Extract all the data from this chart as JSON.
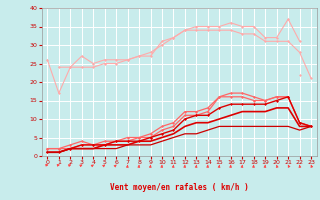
{
  "xlabel": "Vent moyen/en rafales ( km/h )",
  "bg_color": "#c8ecec",
  "grid_color": "#ffffff",
  "x_values": [
    0,
    1,
    2,
    3,
    4,
    5,
    6,
    7,
    8,
    9,
    10,
    11,
    12,
    13,
    14,
    15,
    16,
    17,
    18,
    19,
    20,
    21,
    22,
    23
  ],
  "series": [
    {
      "name": "light1",
      "color": "#ffaaaa",
      "lw": 0.8,
      "marker": "D",
      "ms": 1.5,
      "values": [
        26,
        17,
        24,
        27,
        25,
        26,
        26,
        26,
        27,
        27,
        31,
        32,
        34,
        34,
        34,
        34,
        34,
        33,
        33,
        31,
        31,
        31,
        28,
        21
      ]
    },
    {
      "name": "light2",
      "color": "#ffaaaa",
      "lw": 0.8,
      "marker": "D",
      "ms": 1.5,
      "values": [
        null,
        24,
        24,
        24,
        24,
        25,
        25,
        26,
        27,
        28,
        30,
        32,
        34,
        35,
        35,
        35,
        36,
        35,
        35,
        32,
        32,
        37,
        31,
        null
      ]
    },
    {
      "name": "light3",
      "color": "#ffaaaa",
      "lw": 0.8,
      "marker": "D",
      "ms": 1.5,
      "values": [
        null,
        null,
        null,
        null,
        null,
        null,
        null,
        null,
        null,
        null,
        null,
        null,
        null,
        null,
        null,
        null,
        null,
        null,
        null,
        null,
        null,
        null,
        22,
        null
      ]
    },
    {
      "name": "medium1",
      "color": "#ff6666",
      "lw": 0.9,
      "marker": "D",
      "ms": 1.5,
      "values": [
        2,
        2,
        2,
        3,
        3,
        3,
        4,
        4,
        5,
        5,
        7,
        8,
        11,
        11,
        12,
        16,
        16,
        16,
        15,
        15,
        16,
        16,
        9,
        8
      ]
    },
    {
      "name": "medium2",
      "color": "#ff6666",
      "lw": 0.9,
      "marker": "D",
      "ms": 1.5,
      "values": [
        2,
        2,
        3,
        4,
        3,
        4,
        4,
        5,
        5,
        6,
        8,
        9,
        12,
        12,
        13,
        16,
        17,
        17,
        16,
        15,
        16,
        16,
        9,
        8
      ]
    },
    {
      "name": "dark1",
      "color": "#dd0000",
      "lw": 1.0,
      "marker": "D",
      "ms": 1.5,
      "values": [
        1,
        1,
        2,
        3,
        3,
        3,
        4,
        4,
        4,
        5,
        6,
        7,
        10,
        11,
        11,
        13,
        14,
        14,
        14,
        14,
        15,
        16,
        9,
        8
      ]
    },
    {
      "name": "dark2",
      "color": "#dd0000",
      "lw": 1.2,
      "marker": null,
      "ms": 0,
      "values": [
        1,
        1,
        2,
        2,
        2,
        3,
        3,
        3,
        4,
        4,
        5,
        6,
        8,
        9,
        9,
        10,
        11,
        12,
        12,
        12,
        13,
        13,
        8,
        8
      ]
    },
    {
      "name": "bottom",
      "color": "#cc0000",
      "lw": 0.9,
      "marker": null,
      "ms": 0,
      "values": [
        1,
        1,
        2,
        2,
        2,
        2,
        2,
        3,
        3,
        3,
        4,
        5,
        6,
        6,
        7,
        8,
        8,
        8,
        8,
        8,
        8,
        8,
        7,
        8
      ]
    }
  ],
  "arrow_angles": [
    80,
    75,
    65,
    55,
    50,
    45,
    40,
    5,
    5,
    5,
    5,
    5,
    5,
    5,
    5,
    5,
    5,
    5,
    5,
    5,
    -10,
    -20,
    -5,
    -15
  ],
  "xlim": [
    -0.5,
    23.5
  ],
  "ylim": [
    0,
    40
  ],
  "yticks": [
    0,
    5,
    10,
    15,
    20,
    25,
    30,
    35,
    40
  ],
  "xticks": [
    0,
    1,
    2,
    3,
    4,
    5,
    6,
    7,
    8,
    9,
    10,
    11,
    12,
    13,
    14,
    15,
    16,
    17,
    18,
    19,
    20,
    21,
    22,
    23
  ]
}
